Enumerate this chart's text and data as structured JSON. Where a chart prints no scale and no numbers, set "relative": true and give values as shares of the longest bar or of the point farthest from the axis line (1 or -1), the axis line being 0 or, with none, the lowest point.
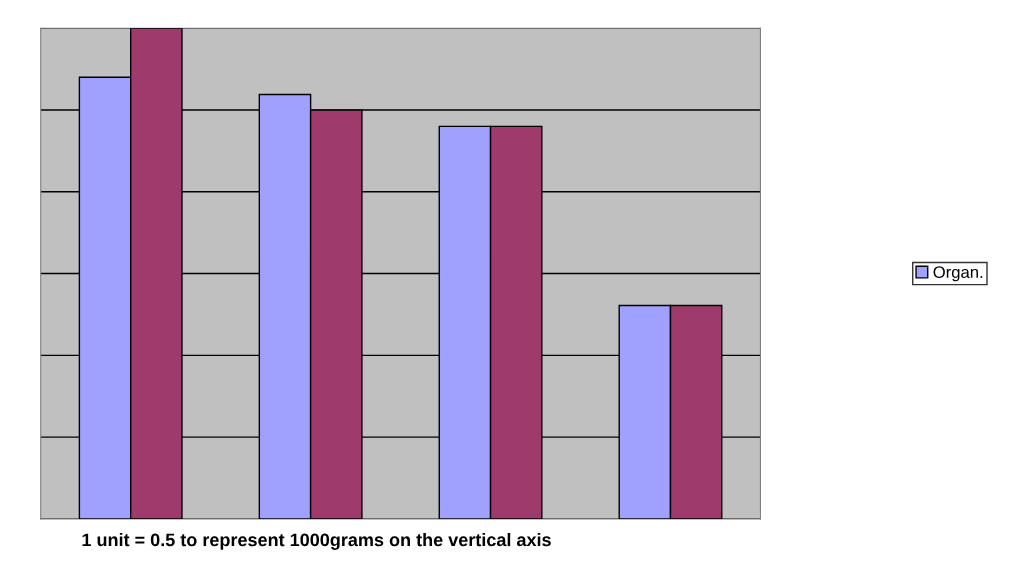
{
  "chart_data": {
    "type": "bar",
    "relative": true,
    "categories": [
      null,
      null,
      null,
      null
    ],
    "series": [
      {
        "name": "Organ.",
        "color": "#a0a0ff",
        "values": [
          0.9,
          0.865,
          0.8,
          0.435
        ]
      },
      {
        "color": "#9e3a6c",
        "values": [
          1.0,
          0.833,
          0.8,
          0.435
        ]
      }
    ],
    "grid": "y",
    "legend": "right",
    "annotations": [
      "1 unit = 0.5 to represent 1000grams on the vertical axis"
    ]
  }
}
